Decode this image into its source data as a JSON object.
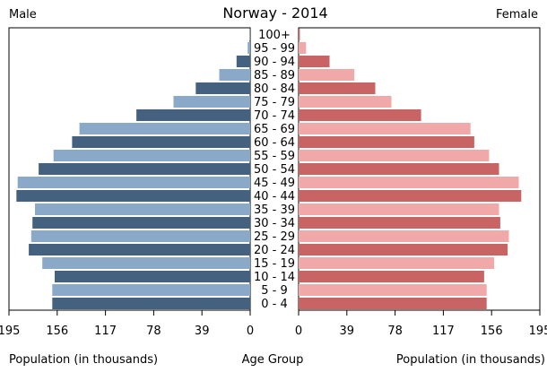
{
  "chart_data": {
    "type": "bar",
    "title": "Norway - 2014",
    "left_label": "Male",
    "right_label": "Female",
    "center_label": "Age Group",
    "left_axis_label": "Population (in thousands)",
    "right_axis_label": "Population (in thousands)",
    "xlim": [
      0,
      195
    ],
    "tick_values": [
      195,
      156,
      117,
      78,
      39,
      0
    ],
    "categories": [
      "0 - 4",
      "5 - 9",
      "10 - 14",
      "15 - 19",
      "20 - 24",
      "25 - 29",
      "30 - 34",
      "35 - 39",
      "40 - 44",
      "45 - 49",
      "50 - 54",
      "55 - 59",
      "60 - 64",
      "65 - 69",
      "70 - 74",
      "75 - 79",
      "80 - 84",
      "85 - 89",
      "90 - 94",
      "95 - 99",
      "100+"
    ],
    "series": [
      {
        "name": "Male",
        "values": [
          160,
          160,
          158,
          168,
          179,
          177,
          176,
          174,
          189,
          188,
          171,
          159,
          144,
          138,
          92,
          62,
          44,
          25,
          11,
          2,
          0.3
        ],
        "colors": [
          "#44617f",
          "#8aa8c8"
        ]
      },
      {
        "name": "Female",
        "values": [
          152,
          152,
          150,
          158,
          169,
          170,
          163,
          162,
          180,
          178,
          162,
          154,
          142,
          139,
          99,
          75,
          62,
          45,
          25,
          6,
          1
        ],
        "colors": [
          "#c96464",
          "#f1a8a8"
        ]
      }
    ],
    "grid": false
  }
}
